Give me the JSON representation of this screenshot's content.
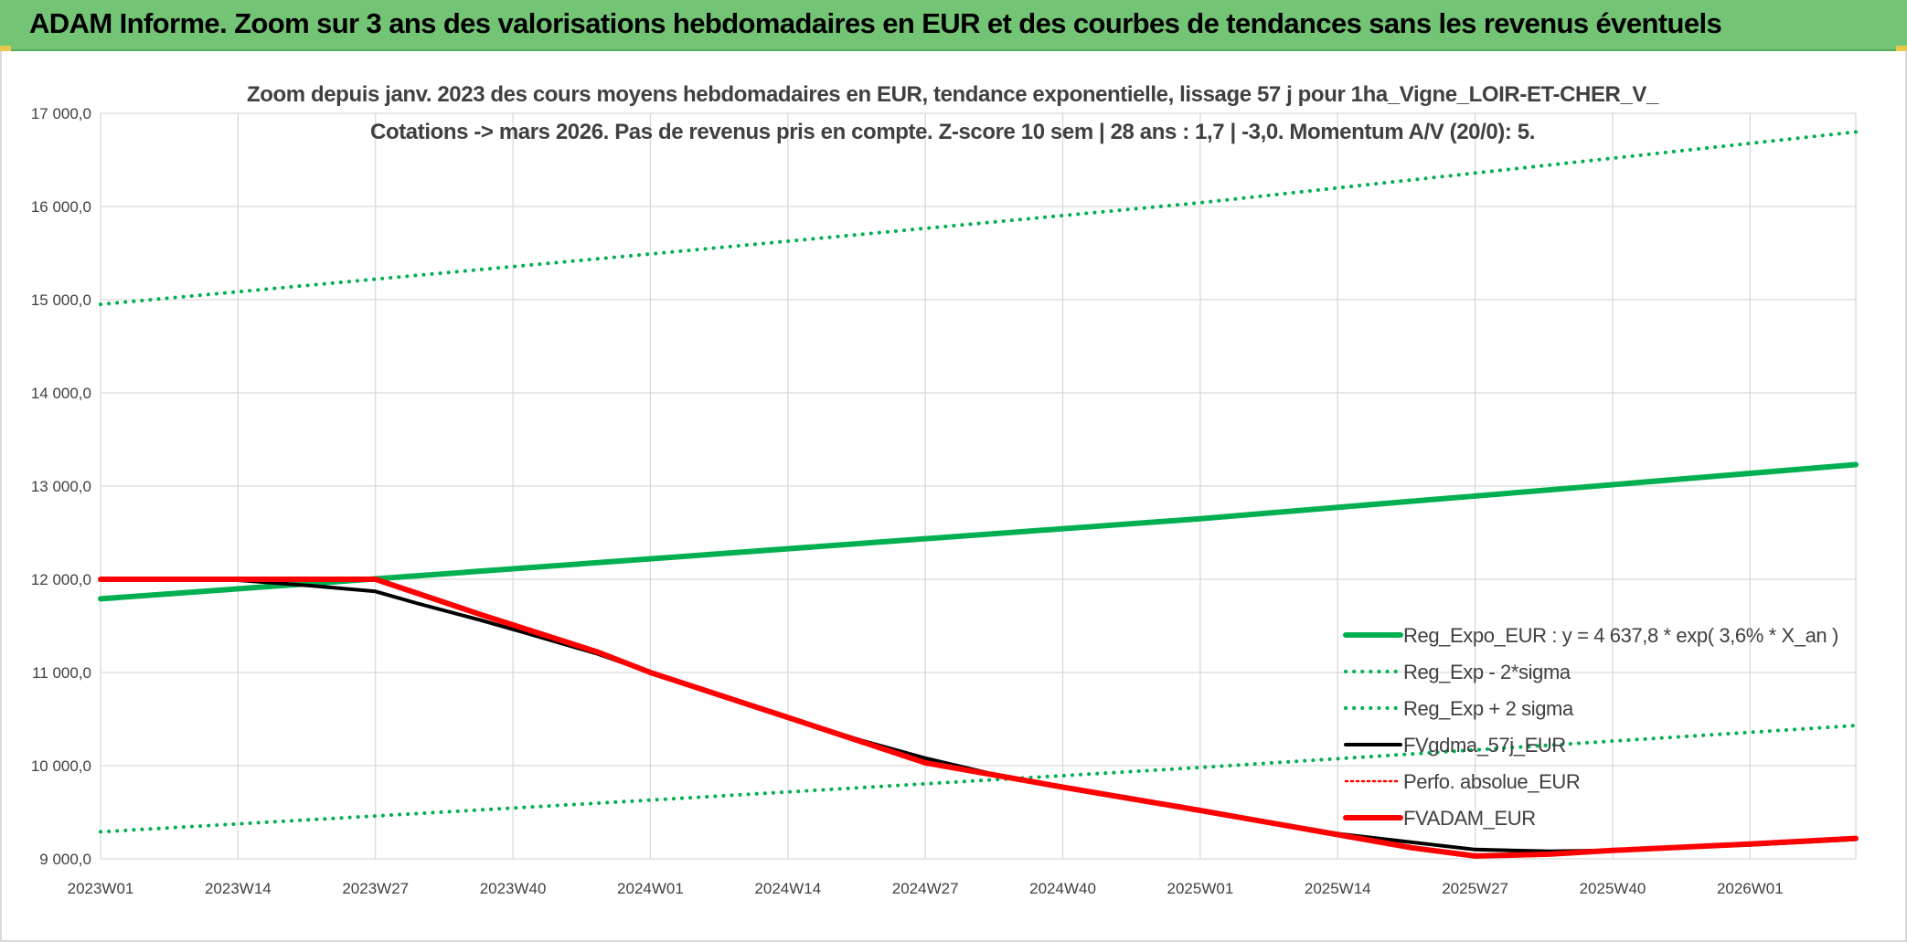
{
  "header": {
    "title": "ADAM Informe. Zoom sur 3 ans des valorisations hebdomadaires en EUR et des courbes de tendances sans les revenus éventuels"
  },
  "colors": {
    "header_bg": "#74c476",
    "accent_green": "#00b050",
    "red": "#ff0000",
    "black": "#000000"
  },
  "chart_data": {
    "type": "line",
    "title": "Zoom depuis janv. 2023 des cours moyens hebdomadaires en EUR, tendance exponentielle, lissage 57 j pour 1ha_Vigne_LOIR-ET-CHER_V_",
    "subtitle": "Cotations -> mars 2026. Pas de revenus pris en compte. Z-score 10 sem | 28 ans : 1,7 | -3,0. Momentum A/V (20/0): 5.",
    "xlabel": "",
    "ylabel": "",
    "ylim": [
      9000,
      17000
    ],
    "yticks": [
      "9 000,0",
      "10 000,0",
      "11 000,0",
      "12 000,0",
      "13 000,0",
      "14 000,0",
      "15 000,0",
      "16 000,0",
      "17 000,0"
    ],
    "x_tick_labels": [
      "2023W01",
      "2023W14",
      "2023W27",
      "2023W40",
      "2024W01",
      "2024W14",
      "2024W27",
      "2024W40",
      "2025W01",
      "2025W14",
      "2025W27",
      "2025W40",
      "2026W01"
    ],
    "grid": true,
    "legend_position": "right",
    "series": [
      {
        "name": "Reg_Expo_EUR : y = 4 637,8 * exp( 3,6% *  X_an )",
        "style": "solid-thick",
        "color": "#00b050",
        "points": [
          [
            0,
            11790
          ],
          [
            52,
            12220
          ],
          [
            104,
            12650
          ],
          [
            166,
            13230
          ]
        ]
      },
      {
        "name": "Reg_Exp - 2*sigma",
        "style": "dotted",
        "color": "#00b050",
        "points": [
          [
            0,
            9290
          ],
          [
            52,
            9630
          ],
          [
            104,
            9980
          ],
          [
            166,
            10430
          ]
        ]
      },
      {
        "name": "Reg_Exp + 2 sigma",
        "style": "dotted",
        "color": "#00b050",
        "points": [
          [
            0,
            14950
          ],
          [
            52,
            15490
          ],
          [
            104,
            16040
          ],
          [
            166,
            16800
          ]
        ]
      },
      {
        "name": "FVgdma_57j_EUR",
        "style": "solid",
        "color": "#000000",
        "points": [
          [
            0,
            12000
          ],
          [
            13,
            11990
          ],
          [
            20,
            11930
          ],
          [
            26,
            11870
          ],
          [
            30,
            11740
          ],
          [
            36,
            11560
          ],
          [
            40,
            11430
          ],
          [
            47,
            11200
          ],
          [
            52,
            11000
          ],
          [
            60,
            10700
          ],
          [
            66,
            10480
          ],
          [
            72,
            10270
          ],
          [
            78,
            10080
          ],
          [
            84,
            9920
          ],
          [
            91,
            9770
          ],
          [
            104,
            9520
          ],
          [
            117,
            9270
          ],
          [
            130,
            9100
          ],
          [
            137,
            9080
          ],
          [
            143,
            9090
          ],
          [
            156,
            9150
          ],
          [
            166,
            9210
          ]
        ]
      },
      {
        "name": "Perfo. absolue_EUR",
        "style": "dotted",
        "color": "#ff0000",
        "points": [
          [
            0,
            12000
          ],
          [
            26,
            12000
          ],
          [
            36,
            11620
          ],
          [
            47,
            11220
          ],
          [
            52,
            11000
          ],
          [
            66,
            10480
          ],
          [
            78,
            10030
          ],
          [
            91,
            9770
          ],
          [
            104,
            9520
          ],
          [
            117,
            9260
          ],
          [
            124,
            9120
          ],
          [
            130,
            9030
          ],
          [
            137,
            9050
          ],
          [
            143,
            9090
          ],
          [
            156,
            9160
          ],
          [
            166,
            9220
          ]
        ]
      },
      {
        "name": "FVADAM_EUR",
        "style": "solid-thick",
        "color": "#ff0000",
        "points": [
          [
            0,
            12000
          ],
          [
            26,
            12000
          ],
          [
            36,
            11620
          ],
          [
            47,
            11220
          ],
          [
            52,
            11000
          ],
          [
            66,
            10480
          ],
          [
            78,
            10030
          ],
          [
            91,
            9770
          ],
          [
            104,
            9520
          ],
          [
            117,
            9260
          ],
          [
            124,
            9120
          ],
          [
            130,
            9030
          ],
          [
            137,
            9050
          ],
          [
            143,
            9090
          ],
          [
            156,
            9160
          ],
          [
            166,
            9220
          ]
        ]
      }
    ]
  }
}
